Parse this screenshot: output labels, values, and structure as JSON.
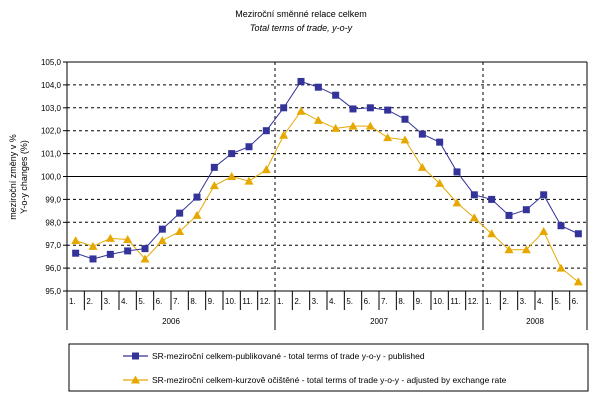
{
  "chart_data": {
    "type": "line",
    "title": "Meziroční směnné relace celkem",
    "subtitle": "Total terms of trade, y-o-y",
    "ylabel_line1": "meziroční změny v %",
    "ylabel_line2": "Y-o-y changes (%)",
    "ylim": [
      95.0,
      105.0
    ],
    "yticks": [
      "95,0",
      "96,0",
      "97,0",
      "98,0",
      "99,0",
      "100,0",
      "101,0",
      "102,0",
      "103,0",
      "104,0",
      "105,0"
    ],
    "ytick_values": [
      95,
      96,
      97,
      98,
      99,
      100,
      101,
      102,
      103,
      104,
      105
    ],
    "categories": [
      "1.",
      "2.",
      "3.",
      "4.",
      "5.",
      "6.",
      "7.",
      "8.",
      "9.",
      "10.",
      "11.",
      "12.",
      "1.",
      "2.",
      "3.",
      "4.",
      "5.",
      "6.",
      "7.",
      "8.",
      "9.",
      "10.",
      "11.",
      "12.",
      "1.",
      "2.",
      "3.",
      "4.",
      "5.",
      "6."
    ],
    "years": [
      {
        "label": "2006",
        "months": 12
      },
      {
        "label": "2007",
        "months": 12
      },
      {
        "label": "2008",
        "months": 6
      }
    ],
    "grid": true,
    "legend_position": "bottom",
    "series": [
      {
        "name": "SR-meziroční celkem-publikované - total terms of trade y-o-y - published",
        "color": "#333399",
        "marker": "square",
        "values": [
          96.65,
          96.4,
          96.6,
          96.75,
          96.85,
          97.7,
          98.4,
          99.1,
          100.4,
          101.0,
          101.3,
          102.0,
          103.0,
          104.15,
          103.9,
          103.55,
          102.95,
          103.0,
          102.9,
          102.5,
          101.85,
          101.5,
          100.2,
          99.2,
          99.0,
          98.3,
          98.55,
          99.2,
          97.85,
          97.5
        ]
      },
      {
        "name": "SR-meziroční celkem-kurzově očištěné - total terms of trade y-o-y - adjusted by exchange rate",
        "color": "#E6A800",
        "marker": "triangle",
        "values": [
          97.2,
          96.95,
          97.3,
          97.25,
          96.4,
          97.2,
          97.6,
          98.3,
          99.6,
          100.0,
          99.8,
          100.3,
          101.8,
          102.85,
          102.45,
          102.1,
          102.2,
          102.2,
          101.7,
          101.6,
          100.4,
          99.7,
          98.85,
          98.2,
          97.5,
          96.8,
          96.8,
          97.6,
          96.0,
          95.4
        ]
      }
    ]
  }
}
